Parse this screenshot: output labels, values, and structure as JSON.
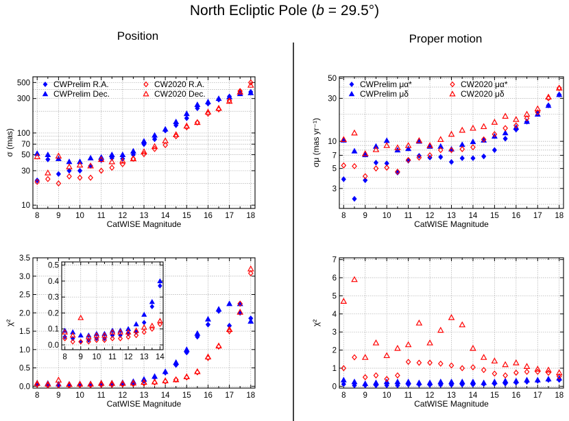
{
  "figure": {
    "title_prefix": "North Ecliptic Pole (",
    "title_b": "b",
    "title_suffix": " = 29.5°)",
    "left_heading": "Position",
    "right_heading": "Proper motion",
    "colors": {
      "cwprelim": "#0000ff",
      "cw2020": "#ff0000",
      "grid": "#aaaaaa",
      "axis": "#000000"
    }
  },
  "chart_data": [
    {
      "id": "pos_sigma",
      "type": "scatter",
      "xlabel": "CatWISE Magnitude",
      "ylabel": "σ (mas)",
      "yscale": "log",
      "xlim": [
        7.8,
        18.2
      ],
      "ylim": [
        9,
        600
      ],
      "xticks": [
        8,
        9,
        10,
        11,
        12,
        13,
        14,
        15,
        16,
        17,
        18
      ],
      "yticks": [
        10,
        30,
        50,
        70,
        100,
        300,
        500
      ],
      "ytick_labels": [
        "10",
        "30",
        "50",
        "70",
        "100",
        "300",
        "500"
      ],
      "ygrid": [
        10,
        20,
        30,
        40,
        50,
        60,
        70,
        80,
        90,
        100,
        200,
        300,
        400,
        500
      ],
      "legend": {
        "position": "top-left",
        "entries": [
          "CWPrelim R.A.",
          "CWPrelim Dec.",
          "CW2020 R.A.",
          "CW2020 Dec."
        ]
      },
      "x": [
        8,
        8.5,
        9,
        9.5,
        10,
        10.5,
        11,
        11.5,
        12,
        12.5,
        13,
        13.5,
        14,
        14.5,
        15,
        15.5,
        16,
        16.5,
        17,
        17.5,
        18
      ],
      "series": [
        {
          "name": "CWPrelim R.A.",
          "marker": "diamond-filled",
          "color": "#0000ff",
          "values": [
            22,
            43,
            27,
            30,
            30,
            35,
            42,
            45,
            44,
            50,
            70,
            82,
            108,
            128,
            160,
            220,
            255,
            290,
            320,
            355,
            370
          ]
        },
        {
          "name": "CWPrelim Dec.",
          "marker": "triangle-filled",
          "color": "#0000ff",
          "values": [
            52,
            50,
            44,
            40,
            40,
            45,
            46,
            50,
            50,
            56,
            77,
            93,
            113,
            143,
            185,
            247,
            270,
            300,
            315,
            350,
            360
          ]
        },
        {
          "name": "CW2020 R.A.",
          "marker": "diamond-open",
          "color": "#ff0000",
          "values": [
            21,
            23,
            20,
            25,
            24,
            24,
            30,
            33,
            37,
            44,
            51,
            60,
            68,
            90,
            120,
            140,
            185,
            212,
            280,
            380,
            500
          ]
        },
        {
          "name": "CW2020 Dec.",
          "marker": "triangle-open",
          "color": "#ff0000",
          "values": [
            47,
            28,
            48,
            34,
            36,
            35,
            43,
            40,
            41,
            44,
            55,
            65,
            78,
            95,
            125,
            140,
            195,
            220,
            275,
            370,
            460
          ]
        }
      ]
    },
    {
      "id": "pm_sigma",
      "type": "scatter",
      "xlabel": "CatWISE Magnitude",
      "ylabel": "σμ (mas yr⁻¹)",
      "yscale": "log",
      "xlim": [
        7.8,
        18.2
      ],
      "ylim": [
        1.8,
        52
      ],
      "xticks": [
        8,
        9,
        10,
        11,
        12,
        13,
        14,
        15,
        16,
        17,
        18
      ],
      "yticks": [
        3,
        5,
        7,
        10,
        30,
        50
      ],
      "ytick_labels": [
        "3",
        "5",
        "7",
        "10",
        "30",
        "50"
      ],
      "ygrid": [
        2,
        3,
        4,
        5,
        6,
        7,
        8,
        9,
        10,
        20,
        30,
        40,
        50
      ],
      "legend": {
        "position": "top-left",
        "entries": [
          "CWPrelim μα*",
          "CWPrelim μδ",
          "CW2020 μα*",
          "CW2020 μδ"
        ]
      },
      "x": [
        8,
        8.5,
        9,
        9.5,
        10,
        10.5,
        11,
        11.5,
        12,
        12.5,
        13,
        13.5,
        14,
        14.5,
        15,
        15.5,
        16,
        16.5,
        17,
        17.5,
        18
      ],
      "series": [
        {
          "name": "CWPrelim μα*",
          "marker": "diamond-filled",
          "color": "#0000ff",
          "values": [
            3.8,
            2.3,
            3.7,
            5.8,
            5.7,
            4.5,
            6.1,
            6.9,
            6.6,
            6.7,
            5.9,
            6.5,
            6.5,
            6.8,
            8.0,
            10.7,
            13.5,
            16.5,
            21,
            25,
            33
          ]
        },
        {
          "name": "CWPrelim μδ",
          "marker": "triangle-filled",
          "color": "#0000ff",
          "values": [
            10.3,
            7.8,
            7.1,
            8.8,
            10.2,
            8.0,
            8.3,
            10,
            8.8,
            8.8,
            8.2,
            9.2,
            9.9,
            10.3,
            11.4,
            12.4,
            14.3,
            16.6,
            20,
            25,
            33
          ]
        },
        {
          "name": "CW2020 μα*",
          "marker": "diamond-open",
          "color": "#ff0000",
          "values": [
            5.4,
            5.3,
            4.1,
            5.0,
            5.1,
            4.6,
            6.2,
            6.6,
            7.0,
            8.0,
            8.0,
            8.2,
            8.6,
            10.5,
            12,
            14,
            15,
            18,
            21,
            30,
            39
          ]
        },
        {
          "name": "CW2020 μδ",
          "marker": "triangle-open",
          "color": "#ff0000",
          "values": [
            10.5,
            12.4,
            7.3,
            8.1,
            9.0,
            8.5,
            9.0,
            10.2,
            9.0,
            10.5,
            12,
            13.3,
            14,
            14.6,
            16.3,
            19,
            17.5,
            20,
            23,
            31,
            39
          ]
        }
      ]
    },
    {
      "id": "pos_chi2",
      "type": "scatter",
      "xlabel": "CatWISE Magnitude",
      "ylabel": "χ²",
      "yscale": "linear",
      "xlim": [
        7.8,
        18.2
      ],
      "ylim": [
        -0.05,
        3.5
      ],
      "xticks": [
        8,
        9,
        10,
        11,
        12,
        13,
        14,
        15,
        16,
        17,
        18
      ],
      "yticks": [
        0,
        0.5,
        1,
        1.5,
        2,
        2.5,
        3,
        3.5
      ],
      "ytick_labels": [
        "0.0",
        "0.5",
        "1.0",
        "1.5",
        "2.0",
        "2.5",
        "3.0",
        "3.5"
      ],
      "ygrid": [
        0,
        0.5,
        1,
        1.5,
        2,
        2.5,
        3,
        3.5
      ],
      "x": [
        8,
        8.5,
        9,
        9.5,
        10,
        10.5,
        11,
        11.5,
        12,
        12.5,
        13,
        13.5,
        14,
        14.5,
        15,
        15.5,
        16,
        16.5,
        17,
        17.5,
        18
      ],
      "series": [
        {
          "name": "CWPrelim R.A.",
          "marker": "diamond-filled",
          "color": "#0000ff",
          "values": [
            0.05,
            0.04,
            0.02,
            0.03,
            0.04,
            0.04,
            0.06,
            0.06,
            0.07,
            0.08,
            0.14,
            0.24,
            0.37,
            0.58,
            0.92,
            1.35,
            1.68,
            2.05,
            1.65,
            2.0,
            1.85
          ]
        },
        {
          "name": "CWPrelim Dec.",
          "marker": "triangle-filled",
          "color": "#0000ff",
          "values": [
            0.09,
            0.08,
            0.06,
            0.06,
            0.07,
            0.07,
            0.09,
            0.09,
            0.1,
            0.13,
            0.19,
            0.27,
            0.4,
            0.65,
            1.0,
            1.44,
            1.83,
            2.1,
            2.25,
            2.25,
            1.77
          ]
        },
        {
          "name": "CW2020 R.A.",
          "marker": "diamond-open",
          "color": "#ff0000",
          "values": [
            0.04,
            0.02,
            0.02,
            0.02,
            0.03,
            0.03,
            0.04,
            0.04,
            0.05,
            0.06,
            0.08,
            0.1,
            0.13,
            0.18,
            0.24,
            0.38,
            0.77,
            1.08,
            1.5,
            2.25,
            3.08
          ]
        },
        {
          "name": "CW2020 Dec.",
          "marker": "triangle-open",
          "color": "#ff0000",
          "values": [
            0.08,
            0.06,
            0.17,
            0.05,
            0.06,
            0.06,
            0.08,
            0.08,
            0.08,
            0.09,
            0.11,
            0.12,
            0.15,
            0.18,
            0.26,
            0.4,
            0.8,
            1.1,
            1.55,
            2.02,
            3.2
          ]
        }
      ],
      "inset": {
        "xlim": [
          7.8,
          14.2
        ],
        "ylim": [
          -0.03,
          0.52
        ],
        "xticks": [
          8,
          9,
          10,
          11,
          12,
          13,
          14
        ],
        "yticks": [
          0,
          0.1,
          0.2,
          0.3,
          0.4,
          0.5
        ],
        "ytick_labels": [
          "0.0",
          "0.1",
          "0.2",
          "0.3",
          "0.4",
          "0.5"
        ],
        "ygrid": [
          0,
          0.1,
          0.2,
          0.3,
          0.4,
          0.5
        ],
        "x": [
          8,
          8.5,
          9,
          9.5,
          10,
          10.5,
          11,
          11.5,
          12,
          12.5,
          13,
          13.5,
          14
        ],
        "series": [
          {
            "name": "CWPrelim R.A.",
            "marker": "diamond-filled",
            "color": "#0000ff",
            "values": [
              0.05,
              0.04,
              0.02,
              0.03,
              0.04,
              0.04,
              0.06,
              0.06,
              0.07,
              0.08,
              0.14,
              0.24,
              0.37
            ]
          },
          {
            "name": "CWPrelim Dec.",
            "marker": "triangle-filled",
            "color": "#0000ff",
            "values": [
              0.09,
              0.08,
              0.06,
              0.06,
              0.07,
              0.07,
              0.09,
              0.09,
              0.1,
              0.13,
              0.19,
              0.27,
              0.4
            ]
          },
          {
            "name": "CW2020 R.A.",
            "marker": "diamond-open",
            "color": "#ff0000",
            "values": [
              0.04,
              0.02,
              0.02,
              0.02,
              0.03,
              0.03,
              0.04,
              0.04,
              0.05,
              0.06,
              0.08,
              0.1,
              0.13
            ]
          },
          {
            "name": "CW2020 Dec.",
            "marker": "triangle-open",
            "color": "#ff0000",
            "values": [
              0.08,
              0.06,
              0.17,
              0.05,
              0.06,
              0.06,
              0.08,
              0.08,
              0.08,
              0.09,
              0.11,
              0.12,
              0.15
            ]
          }
        ]
      }
    },
    {
      "id": "pm_chi2",
      "type": "scatter",
      "xlabel": "CatWISE Magnitude",
      "ylabel": "χ²",
      "yscale": "linear",
      "xlim": [
        7.8,
        18.2
      ],
      "ylim": [
        -0.1,
        7.1
      ],
      "xticks": [
        8,
        9,
        10,
        11,
        12,
        13,
        14,
        15,
        16,
        17,
        18
      ],
      "yticks": [
        0,
        1,
        2,
        3,
        4,
        5,
        6,
        7
      ],
      "ytick_labels": [
        "0",
        "1",
        "2",
        "3",
        "4",
        "5",
        "6",
        "7"
      ],
      "ygrid": [
        0,
        1,
        2,
        3,
        4,
        5,
        6,
        7
      ],
      "x": [
        8,
        8.5,
        9,
        9.5,
        10,
        10.5,
        11,
        11.5,
        12,
        12.5,
        13,
        13.5,
        14,
        14.5,
        15,
        15.5,
        16,
        16.5,
        17,
        17.5,
        18
      ],
      "series": [
        {
          "name": "CWPrelim μα*",
          "marker": "diamond-filled",
          "color": "#0000ff",
          "values": [
            0.12,
            0.05,
            0.05,
            0.05,
            0.05,
            0.05,
            0.1,
            0.1,
            0.08,
            0.08,
            0.08,
            0.1,
            0.1,
            0.12,
            0.14,
            0.15,
            0.2,
            0.25,
            0.3,
            0.35,
            0.35
          ]
        },
        {
          "name": "CWPrelim μδ",
          "marker": "triangle-filled",
          "color": "#0000ff",
          "values": [
            0.35,
            0.25,
            0.15,
            0.2,
            0.25,
            0.25,
            0.25,
            0.2,
            0.2,
            0.25,
            0.25,
            0.25,
            0.25,
            0.2,
            0.25,
            0.3,
            0.3,
            0.35,
            0.35,
            0.4,
            0.45
          ]
        },
        {
          "name": "CW2020 μα*",
          "marker": "diamond-open",
          "color": "#ff0000",
          "values": [
            1.0,
            1.6,
            0.5,
            0.6,
            0.4,
            0.6,
            1.35,
            1.3,
            1.3,
            1.25,
            1.15,
            1.0,
            1.05,
            0.9,
            0.7,
            0.6,
            0.75,
            0.8,
            0.8,
            0.75,
            0.55
          ]
        },
        {
          "name": "CW2020 μδ",
          "marker": "triangle-open",
          "color": "#ff0000",
          "values": [
            4.7,
            5.9,
            1.6,
            2.4,
            1.7,
            2.1,
            2.3,
            3.5,
            2.4,
            3.1,
            3.8,
            3.4,
            2.1,
            1.6,
            1.4,
            1.2,
            1.3,
            1.1,
            0.95,
            0.9,
            0.75
          ]
        }
      ]
    }
  ]
}
